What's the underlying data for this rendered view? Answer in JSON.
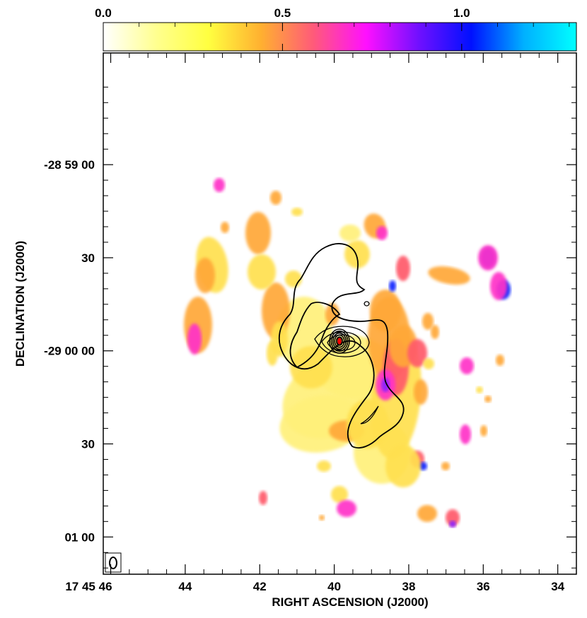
{
  "colorbar": {
    "tick_labels": [
      "0.0",
      "0.5",
      "1.0"
    ],
    "range": [
      0.0,
      1.32
    ],
    "colors": [
      "#ffffff",
      "#ffff90",
      "#ffff40",
      "#ffb030",
      "#ff5a7a",
      "#ff10ff",
      "#7010ff",
      "#0010ff",
      "#00b0ff",
      "#00ffff"
    ]
  },
  "chart_data": {
    "type": "heatmap",
    "xlabel": "RIGHT ASCENSION (J2000)",
    "ylabel": "DECLINATION (J2000)",
    "x_ticks": [
      "17 45 46",
      "44",
      "42",
      "40",
      "38",
      "36",
      "34"
    ],
    "y_ticks": [
      "-28 59 00",
      "30",
      "-29 00 00",
      "30",
      "01 00",
      "30"
    ],
    "x_unit": "seconds of RA (17h45m)",
    "xlim": [
      46.2,
      33.5
    ],
    "y_unit": "arcseconds from -29 00 00",
    "ylim": [
      -72,
      96
    ],
    "beam": "ellipse",
    "colors": {
      "contour": "#000000",
      "peak_marker": "#ff0000"
    }
  }
}
